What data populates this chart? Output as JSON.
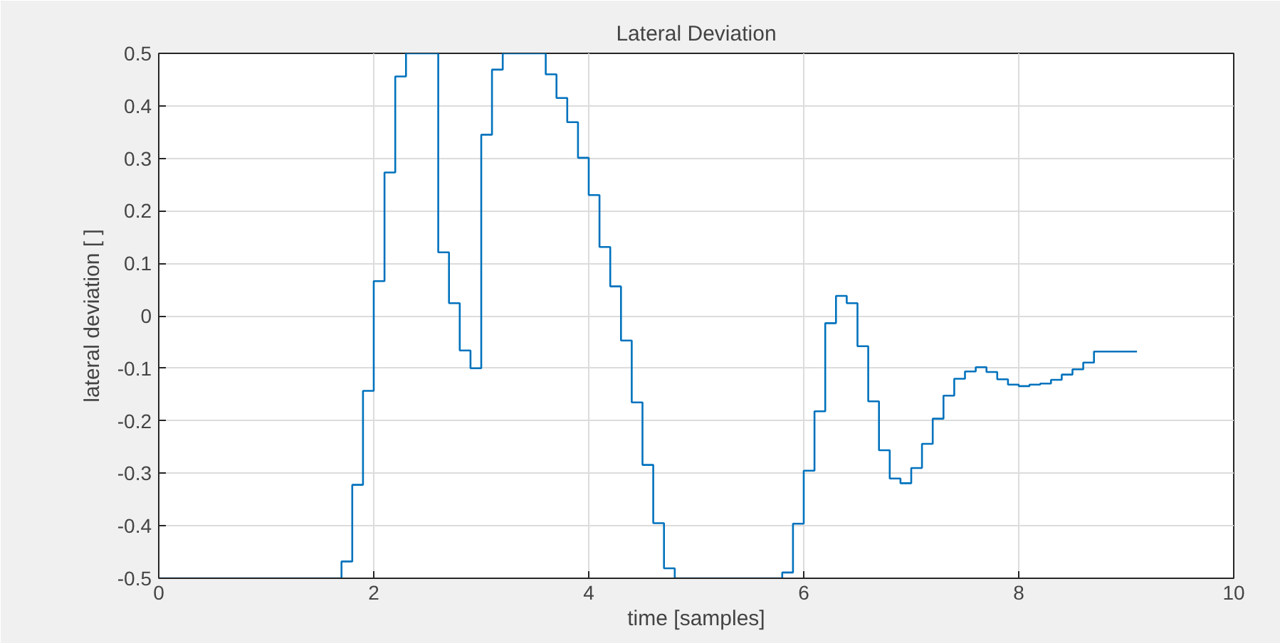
{
  "chart_data": {
    "type": "step",
    "title": "Lateral Deviation",
    "xlabel": "time [samples]",
    "ylabel": "lateral deviation [ ]",
    "x": [
      0,
      1.7,
      1.8,
      1.9,
      2.0,
      2.1,
      2.2,
      2.3,
      2.6,
      2.7,
      2.8,
      2.9,
      3.0,
      3.1,
      3.2,
      3.6,
      3.7,
      3.8,
      3.9,
      4.0,
      4.1,
      4.2,
      4.3,
      4.4,
      4.5,
      4.6,
      4.7,
      4.8,
      5.8,
      5.9,
      6.0,
      6.1,
      6.2,
      6.3,
      6.4,
      6.5,
      6.6,
      6.7,
      6.8,
      6.9,
      7.0,
      7.1,
      7.2,
      7.3,
      7.4,
      7.5,
      7.6,
      7.7,
      7.8,
      7.9,
      8.0,
      8.1,
      8.2,
      8.3,
      8.4,
      8.5,
      8.6,
      8.7,
      9.1
    ],
    "series": [
      {
        "color": "#0072bd",
        "values": [
          -0.5,
          -0.468,
          -0.322,
          -0.143,
          0.066,
          0.273,
          0.456,
          0.5,
          0.121,
          0.024,
          -0.066,
          -0.1,
          0.345,
          0.469,
          0.5,
          0.46,
          0.415,
          0.369,
          0.301,
          0.23,
          0.131,
          0.056,
          -0.047,
          -0.165,
          -0.284,
          -0.395,
          -0.481,
          -0.5,
          -0.489,
          -0.396,
          -0.295,
          -0.182,
          -0.014,
          0.038,
          0.024,
          -0.058,
          -0.163,
          -0.256,
          -0.31,
          -0.319,
          -0.29,
          -0.244,
          -0.196,
          -0.152,
          -0.12,
          -0.106,
          -0.098,
          -0.107,
          -0.121,
          -0.131,
          -0.134,
          -0.131,
          -0.129,
          -0.122,
          -0.112,
          -0.102,
          -0.089,
          -0.068,
          -0.068
        ]
      }
    ],
    "xlim": [
      0,
      10
    ],
    "xticks": [
      0,
      2,
      4,
      6,
      8,
      10
    ],
    "ylim": [
      -0.5,
      0.5
    ],
    "yticks": [
      -0.5,
      -0.4,
      -0.3,
      -0.2,
      -0.1,
      0,
      0.1,
      0.2,
      0.3,
      0.4,
      0.5
    ],
    "grid": true,
    "line_style": "solid",
    "marker": "none"
  }
}
